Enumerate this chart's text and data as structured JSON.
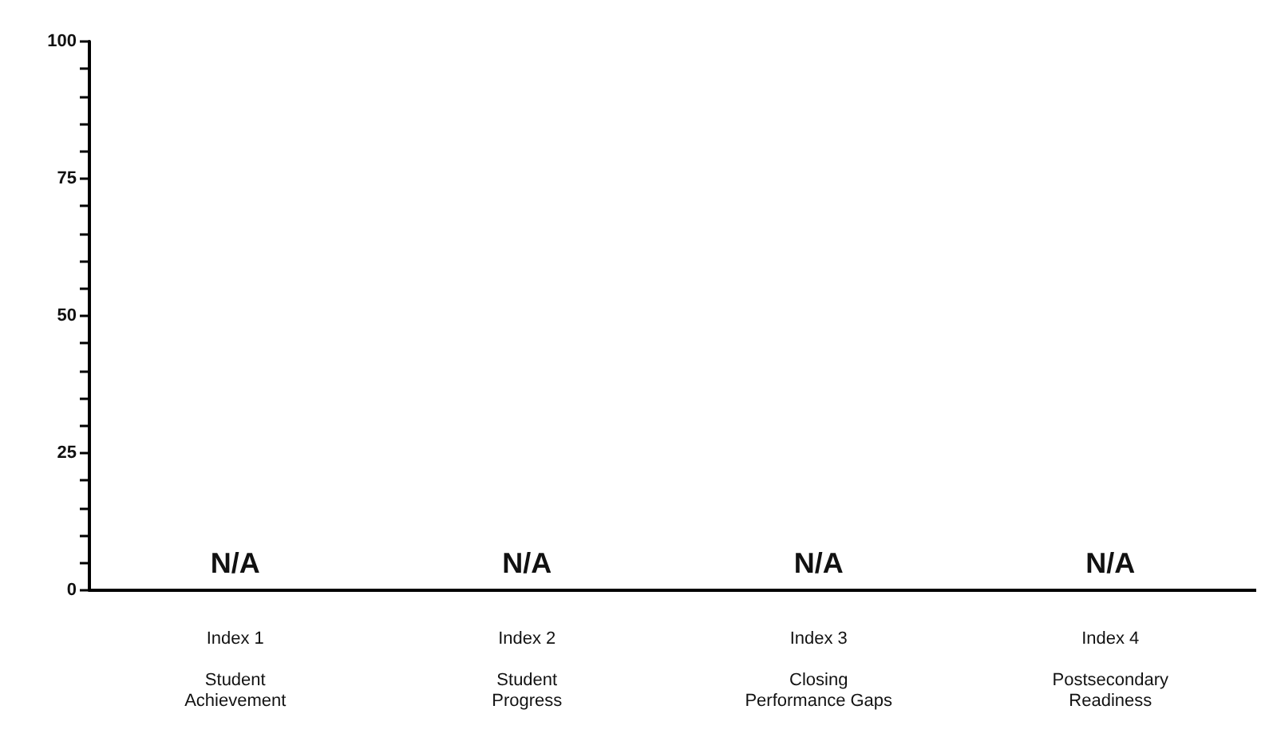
{
  "chart_data": {
    "type": "bar",
    "categories": [
      "Index 1\n\nStudent\nAchievement",
      "Index 2\n\nStudent\nProgress",
      "Index 3\n\nClosing\nPerformance Gaps",
      "Index 4\n\nPostsecondary\nReadiness"
    ],
    "values": [
      null,
      null,
      null,
      null
    ],
    "value_labels": [
      "N/A",
      "N/A",
      "N/A",
      "N/A"
    ],
    "ylim": [
      0,
      100
    ],
    "yticks": [
      0,
      {
        "value": 5,
        "label": null
      },
      {
        "value": 10,
        "label": null
      },
      {
        "value": 15,
        "label": null
      },
      {
        "value": 20,
        "label": null
      },
      25,
      {
        "value": 30,
        "label": null
      },
      {
        "value": 35,
        "label": null
      },
      {
        "value": 40,
        "label": null
      },
      {
        "value": 45,
        "label": null
      },
      50,
      {
        "value": 55,
        "label": null
      },
      {
        "value": 60,
        "label": null
      },
      {
        "value": 65,
        "label": null
      },
      {
        "value": 70,
        "label": null
      },
      75,
      {
        "value": 80,
        "label": null
      },
      {
        "value": 85,
        "label": null
      },
      {
        "value": 90,
        "label": null
      },
      {
        "value": 95,
        "label": null
      },
      100
    ],
    "grid": false
  }
}
